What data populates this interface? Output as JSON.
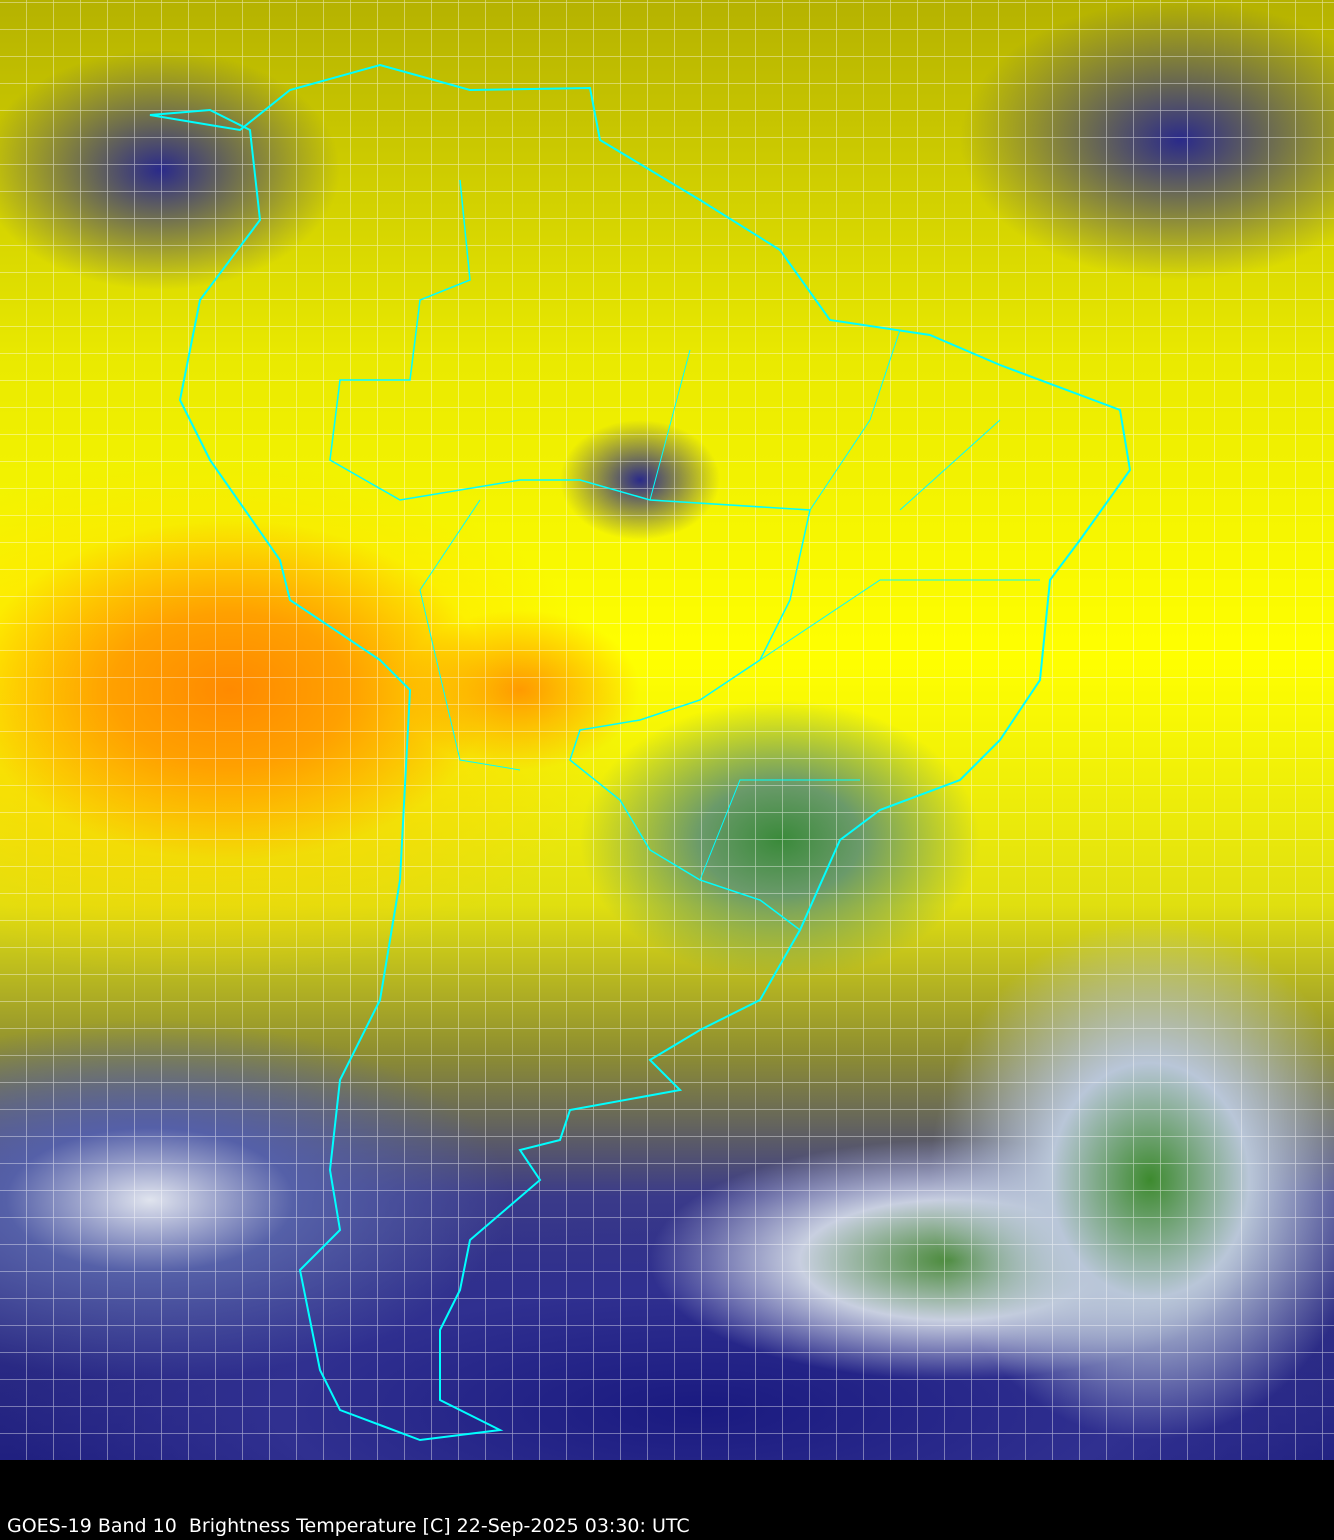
{
  "caption": "GOES-19 Band 10  Brightness Temperature [C] 22-Sep-2025 03:30: UTC",
  "colors": {
    "border_lines": "#00ffff",
    "warm": "#ff8a00",
    "mid": "#ffff00",
    "cold": "#1a1a80",
    "coldest": "#3d8a2e"
  }
}
